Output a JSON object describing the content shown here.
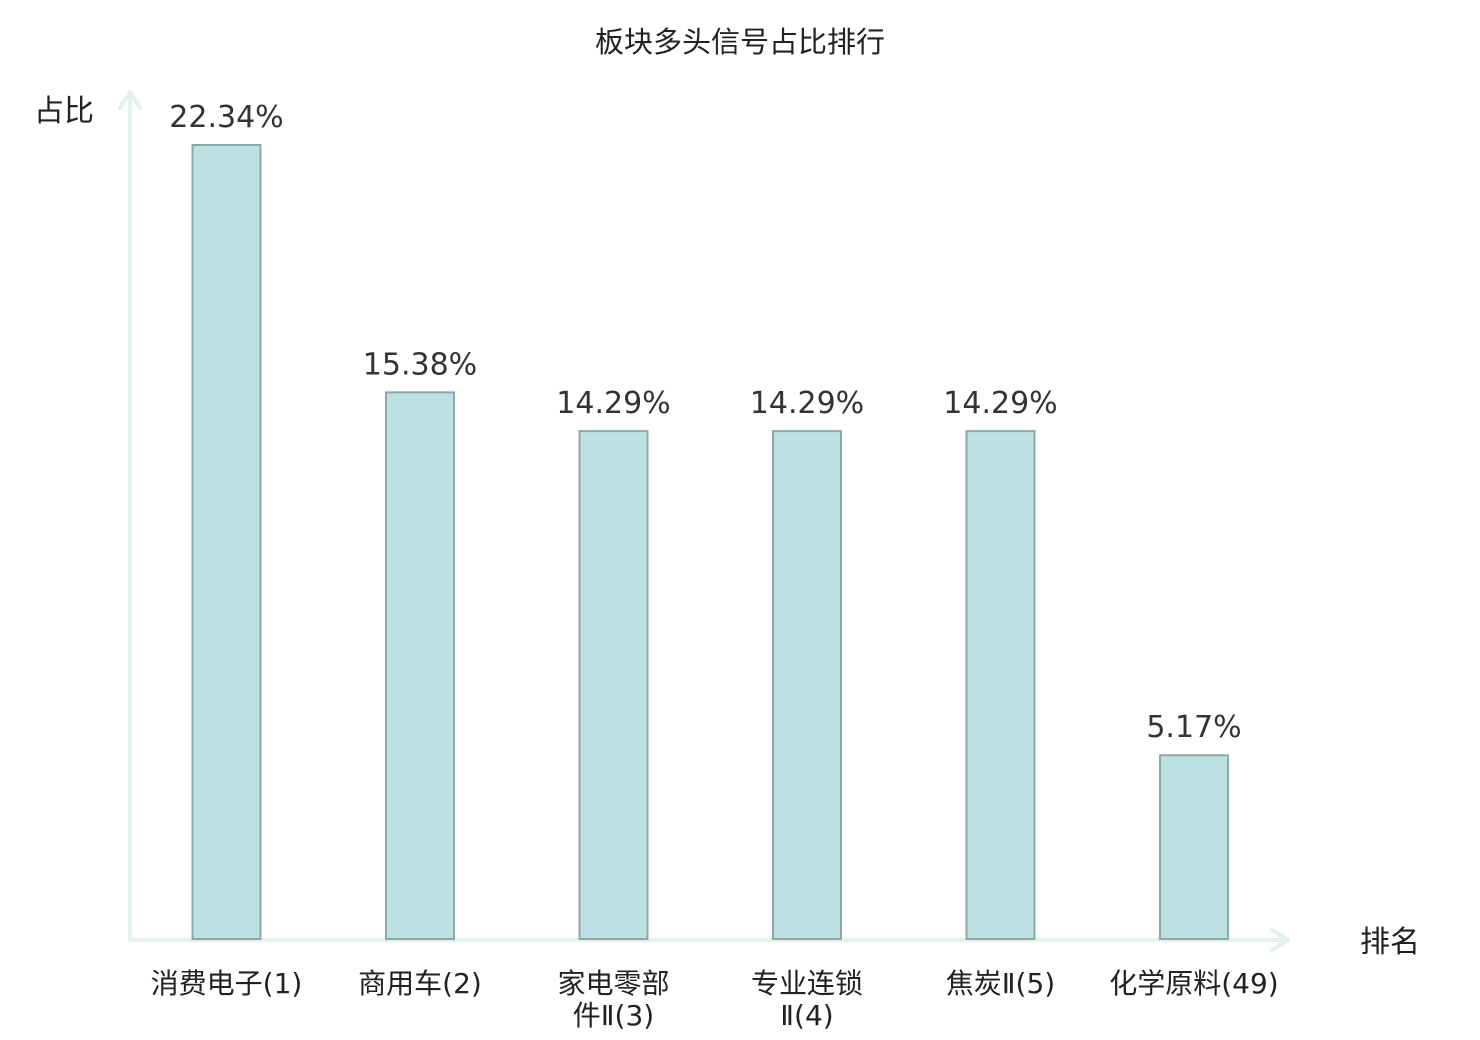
{
  "chart_data": {
    "type": "bar",
    "title": "板块多头信号占比排行",
    "xlabel": "排名",
    "ylabel": "占比",
    "value_unit": "%",
    "categories": [
      {
        "lines": [
          "消费电子(1)"
        ],
        "highlight": false
      },
      {
        "lines": [
          "商用车(2)"
        ],
        "highlight": false
      },
      {
        "lines": [
          "家电零部",
          "件Ⅱ(3)"
        ],
        "highlight": false
      },
      {
        "lines": [
          "专业连锁",
          "Ⅱ(4)"
        ],
        "highlight": false
      },
      {
        "lines": [
          "焦炭Ⅱ(5)"
        ],
        "highlight": false
      },
      {
        "lines": [
          "化学原料(49)"
        ],
        "highlight": true
      }
    ],
    "values": [
      22.34,
      15.38,
      14.29,
      14.29,
      14.29,
      5.17
    ],
    "value_labels": [
      "22.34%",
      "15.38%",
      "14.29%",
      "14.29%",
      "14.29%",
      "5.17%"
    ],
    "ylim": [
      0,
      24
    ],
    "grid": false,
    "colors": {
      "bar_fill": "#bde0e3",
      "bar_stroke": "#8ea8aa",
      "axis": "#e1f2ef",
      "highlight_text": "#d9141b",
      "text": "#222222",
      "value_text": "#333333"
    }
  }
}
